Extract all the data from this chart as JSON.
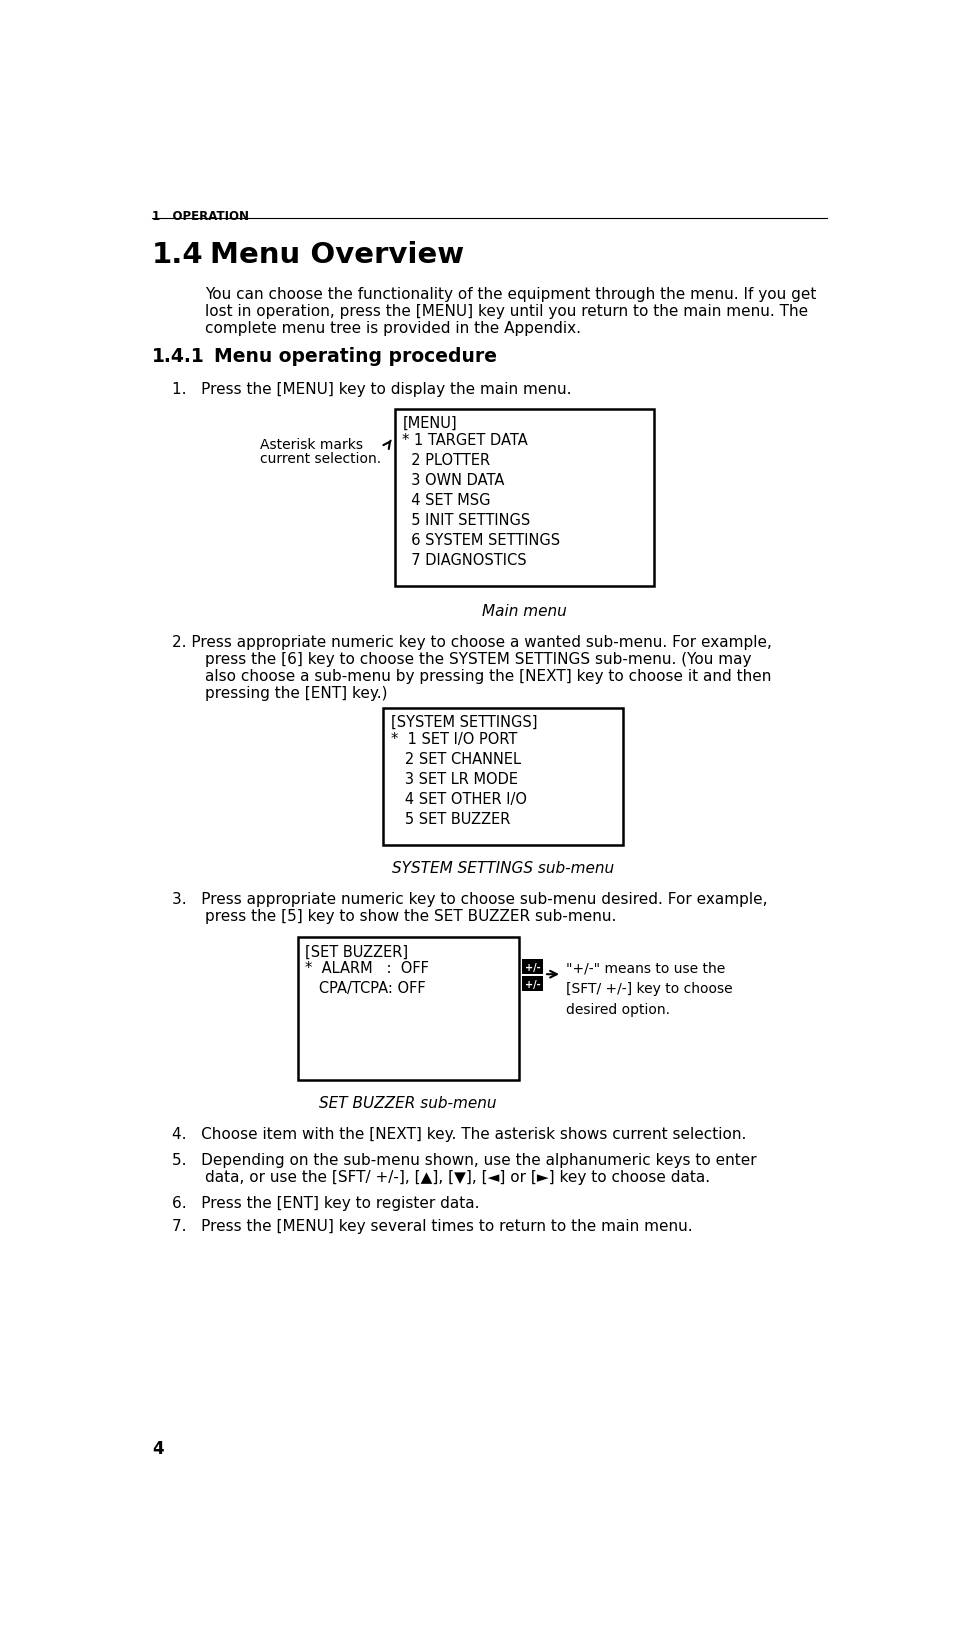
{
  "bg_color": "#ffffff",
  "page_num": "4",
  "section_header": "1   OPERATION",
  "title_num": "1.4",
  "title_text": "Menu Overview",
  "intro_text": "You can choose the functionality of the equipment through the menu. If you get\nlost in operation, press the [MENU] key until you return to the main menu. The\ncomplete menu tree is provided in the Appendix.",
  "subsection_num": "1.4.1",
  "subsection_title": "Menu operating procedure",
  "step1_text": "1.   Press the [MENU] key to display the main menu.",
  "menu_box1_title": "[MENU]",
  "menu_box1_lines": [
    "* 1 TARGET DATA",
    "  2 PLOTTER",
    "  3 OWN DATA",
    "  4 SET MSG",
    "  5 INIT SETTINGS",
    "  6 SYSTEM SETTINGS",
    "  7 DIAGNOSTICS"
  ],
  "annotation1_line1": "Asterisk marks",
  "annotation1_line2": "current selection.",
  "caption1": "Main menu",
  "step2_line1": "2. Press appropriate numeric key to choose a wanted sub-menu. For example,",
  "step2_line2": "press the [6] key to choose the SYSTEM SETTINGS sub-menu. (You may",
  "step2_line3": "also choose a sub-menu by pressing the [NEXT] key to choose it and then",
  "step2_line4": "pressing the [ENT] key.)",
  "menu_box2_title": "[SYSTEM SETTINGS]",
  "menu_box2_lines": [
    "*  1 SET I/O PORT",
    "   2 SET CHANNEL",
    "   3 SET LR MODE",
    "   4 SET OTHER I/O",
    "   5 SET BUZZER"
  ],
  "caption2": "SYSTEM SETTINGS sub-menu",
  "step3_line1": "3.   Press appropriate numeric key to choose sub-menu desired. For example,",
  "step3_line2": "press the [5] key to show the SET BUZZER sub-menu.",
  "menu_box3_title": "[SET BUZZER]",
  "menu_box3_lines": [
    "*  ALARM   :  OFF",
    "   CPA/TCPA: OFF"
  ],
  "pm_label_top": "+/-",
  "pm_label_bot": "+/-",
  "annotation3_text": "\"+/-\" means to use the\n[SFT/ +/-] key to choose\ndesired option.",
  "caption3": "SET BUZZER sub-menu",
  "step4_text": "4.   Choose item with the [NEXT] key. The asterisk shows current selection.",
  "step5_line1": "5.   Depending on the sub-menu shown, use the alphanumeric keys to enter",
  "step5_line2": "data, or use the [SFT/ +/-], [▲], [▼], [◄] or [►] key to choose data.",
  "step6_text": "6.   Press the [ENT] key to register data.",
  "step7_text": "7.   Press the [MENU] key several times to return to the main menu."
}
